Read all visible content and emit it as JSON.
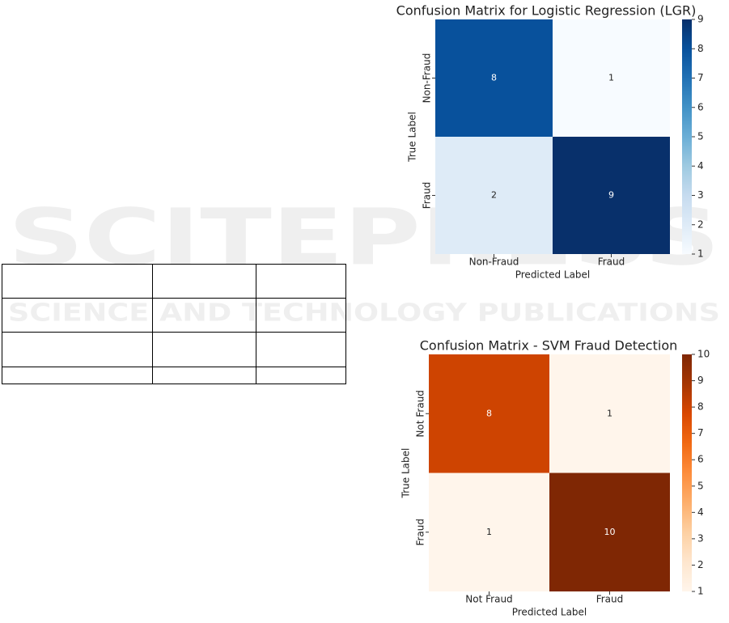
{
  "watermark": {
    "line1": "SCITEPRESS",
    "line2": "SCIENCE AND TECHNOLOGY PUBLICATIONS"
  },
  "chart_data": [
    {
      "type": "heatmap",
      "title": "Confusion Matrix for Logistic Regression (LGR)",
      "x_label": "Predicted Label",
      "y_label": "True Label",
      "x_categories": [
        "Non-Fraud",
        "Fraud"
      ],
      "y_categories": [
        "Non-Fraud",
        "Fraud"
      ],
      "values": [
        [
          8,
          1
        ],
        [
          2,
          9
        ]
      ],
      "colorbar_lim": [
        1,
        9
      ],
      "colorbar_ticks": [
        1,
        2,
        3,
        4,
        5,
        6,
        7,
        8,
        9
      ],
      "colorscale": [
        "#f7fbff",
        "#deebf7",
        "#c6dbef",
        "#9ecae1",
        "#6baed6",
        "#4292c6",
        "#2171b5",
        "#08519c",
        "#08306b"
      ]
    },
    {
      "type": "heatmap",
      "title": "Confusion Matrix - SVM Fraud Detection",
      "x_label": "Predicted Label",
      "y_label": "True Label",
      "x_categories": [
        "Not Fraud",
        "Fraud"
      ],
      "y_categories": [
        "Not Fraud",
        "Fraud"
      ],
      "values": [
        [
          8,
          1
        ],
        [
          1,
          10
        ]
      ],
      "colorbar_lim": [
        1,
        10
      ],
      "colorbar_ticks": [
        1,
        2,
        3,
        4,
        5,
        6,
        7,
        8,
        9,
        10
      ],
      "colorscale": [
        "#fff5eb",
        "#fee6ce",
        "#fdd0a2",
        "#fdae6b",
        "#fd8d3c",
        "#f16913",
        "#d94801",
        "#a63603",
        "#7f2704"
      ]
    }
  ]
}
